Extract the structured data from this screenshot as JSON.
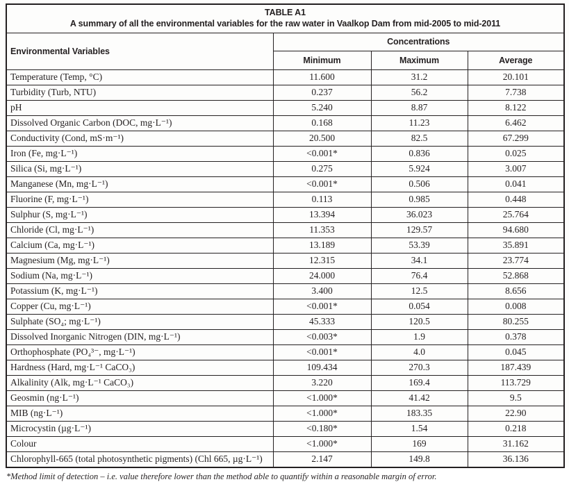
{
  "table": {
    "title": "TABLE A1",
    "subtitle": "A summary of all the environmental variables for the raw water in Vaalkop Dam from mid-2005 to mid-2011",
    "col_headers": {
      "variables": "Environmental Variables",
      "group": "Concentrations",
      "min": "Minimum",
      "max": "Maximum",
      "avg": "Average"
    },
    "rows": [
      {
        "variable": "Temperature (Temp, °C)",
        "min": "11.600",
        "max": "31.2",
        "avg": "20.101"
      },
      {
        "variable": "Turbidity (Turb, NTU)",
        "min": "0.237",
        "max": "56.2",
        "avg": "7.738"
      },
      {
        "variable": "pH",
        "min": "5.240",
        "max": "8.87",
        "avg": "8.122"
      },
      {
        "variable": "Dissolved Organic Carbon (DOC, mg·L⁻¹)",
        "min": "0.168",
        "max": "11.23",
        "avg": "6.462"
      },
      {
        "variable": "Conductivity (Cond, mS·m⁻¹)",
        "min": "20.500",
        "max": "82.5",
        "avg": "67.299"
      },
      {
        "variable": "Iron (Fe, mg·L⁻¹)",
        "min": "<0.001*",
        "max": "0.836",
        "avg": "0.025"
      },
      {
        "variable": "Silica (Si, mg·L⁻¹)",
        "min": "0.275",
        "max": "5.924",
        "avg": "3.007"
      },
      {
        "variable": "Manganese (Mn, mg·L⁻¹)",
        "min": "<0.001*",
        "max": "0.506",
        "avg": "0.041"
      },
      {
        "variable": "Fluorine (F, mg·L⁻¹)",
        "min": "0.113",
        "max": "0.985",
        "avg": "0.448"
      },
      {
        "variable": "Sulphur (S, mg·L⁻¹)",
        "min": "13.394",
        "max": "36.023",
        "avg": "25.764"
      },
      {
        "variable": "Chloride (Cl, mg·L⁻¹)",
        "min": "11.353",
        "max": "129.57",
        "avg": "94.680"
      },
      {
        "variable": "Calcium (Ca, mg·L⁻¹)",
        "min": "13.189",
        "max": "53.39",
        "avg": "35.891"
      },
      {
        "variable": "Magnesium (Mg, mg·L⁻¹)",
        "min": "12.315",
        "max": "34.1",
        "avg": "23.774"
      },
      {
        "variable": "Sodium (Na, mg·L⁻¹)",
        "min": "24.000",
        "max": "76.4",
        "avg": "52.868"
      },
      {
        "variable": "Potassium (K, mg·L⁻¹)",
        "min": "3.400",
        "max": "12.5",
        "avg": "8.656"
      },
      {
        "variable": "Copper (Cu, mg·L⁻¹)",
        "min": "<0.001*",
        "max": "0.054",
        "avg": "0.008"
      },
      {
        "variable": "Sulphate (SO₄; mg·L⁻¹)",
        "min": "45.333",
        "max": "120.5",
        "avg": "80.255"
      },
      {
        "variable": "Dissolved Inorganic Nitrogen (DIN, mg·L⁻¹)",
        "min": "<0.003*",
        "max": "1.9",
        "avg": "0.378"
      },
      {
        "variable": "Orthophosphate (PO₄³⁻, mg·L⁻¹)",
        "min": "<0.001*",
        "max": "4.0",
        "avg": "0.045"
      },
      {
        "variable": "Hardness (Hard, mg·L⁻¹ CaCO₃)",
        "min": "109.434",
        "max": "270.3",
        "avg": "187.439"
      },
      {
        "variable": "Alkalinity (Alk, mg·L⁻¹ CaCO₃)",
        "min": "3.220",
        "max": "169.4",
        "avg": "113.729"
      },
      {
        "variable": "Geosmin (ng·L⁻¹)",
        "min": "<1.000*",
        "max": "41.42",
        "avg": "9.5"
      },
      {
        "variable": "MIB (ng·L⁻¹)",
        "min": "<1.000*",
        "max": "183.35",
        "avg": "22.90"
      },
      {
        "variable": "Microcystin (µg·L⁻¹)",
        "min": "<0.180*",
        "max": "1.54",
        "avg": "0.218"
      },
      {
        "variable": "Colour",
        "min": "<1.000*",
        "max": "169",
        "avg": "31.162"
      },
      {
        "variable": "Chlorophyll-665 (total photosynthetic pigments) (Chl 665, µg·L⁻¹)",
        "min": "2.147",
        "max": "149.8",
        "avg": "36.136"
      }
    ],
    "footnote": "*Method limit of detection – i.e. value therefore lower than the method able to quantify within a reasonable margin of error."
  },
  "colors": {
    "border": "#231f20",
    "text": "#231f20",
    "background": "#fdfdfc"
  }
}
